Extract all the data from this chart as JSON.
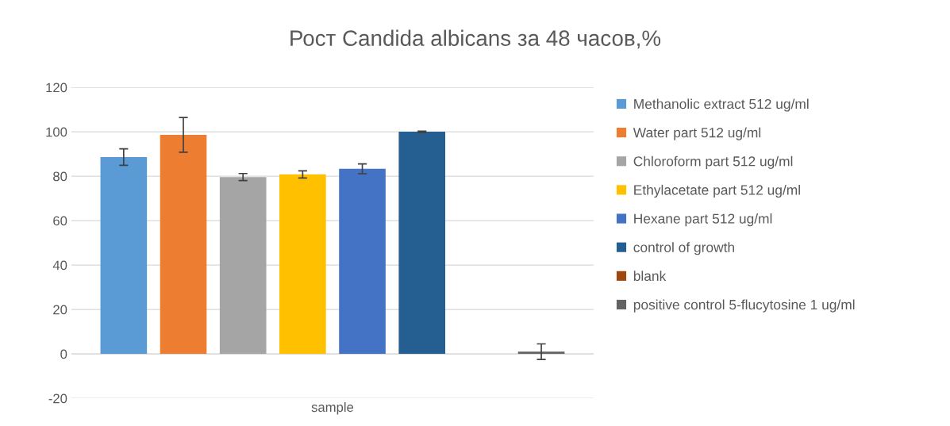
{
  "chart_data": {
    "type": "bar",
    "title": "Рост Candida albicans за 48 часов,%",
    "categories": [
      "sample"
    ],
    "series": [
      {
        "name": "Methanolic extract 512 ug/ml",
        "color": "#5b9bd5",
        "values": [
          88.6
        ],
        "errors": [
          3.7
        ]
      },
      {
        "name": "Water part 512 ug/ml",
        "color": "#ed7d31",
        "values": [
          98.6
        ],
        "errors": [
          7.8
        ]
      },
      {
        "name": "Chloroform part 512 ug/ml",
        "color": "#a5a5a5",
        "values": [
          79.6
        ],
        "errors": [
          1.6
        ]
      },
      {
        "name": "Ethylacetate part 512 ug/ml",
        "color": "#ffc000",
        "values": [
          80.8
        ],
        "errors": [
          1.6
        ]
      },
      {
        "name": "Hexane part 512 ug/ml",
        "color": "#4472c4",
        "values": [
          83.3
        ],
        "errors": [
          2.2
        ]
      },
      {
        "name": "control of growth",
        "color": "#255e91",
        "values": [
          100
        ],
        "errors": [
          0.3
        ]
      },
      {
        "name": "blank",
        "color": "#9e480e",
        "values": [
          0
        ],
        "errors": [
          null
        ]
      },
      {
        "name": "positive control 5-flucytosine 1 ug/ml",
        "color": "#636363",
        "values": [
          1
        ],
        "errors": [
          3.5
        ]
      }
    ],
    "ylim": [
      -20,
      120
    ],
    "yticks": [
      -20,
      0,
      20,
      40,
      60,
      80,
      100,
      120
    ],
    "grid": "y",
    "legend": "right"
  }
}
